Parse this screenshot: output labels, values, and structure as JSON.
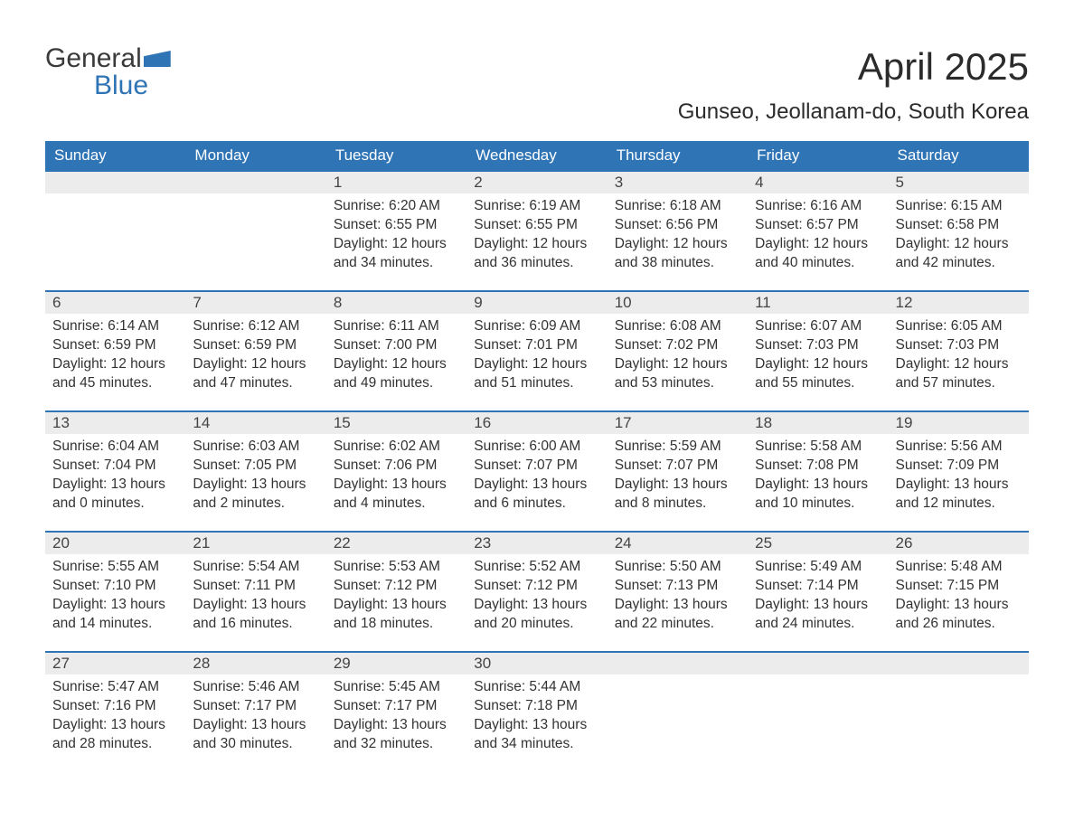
{
  "logo": {
    "word1": "General",
    "word2": "Blue"
  },
  "title": "April 2025",
  "subtitle": "Gunseo, Jeollanam-do, South Korea",
  "colors": {
    "header_bg": "#2f74b5",
    "header_text": "#ffffff",
    "daynum_bg": "#ececec",
    "daynum_border": "#2f74b5",
    "body_text": "#333333",
    "page_bg": "#ffffff",
    "logo_gray": "#3a3a3a",
    "logo_blue": "#2f74b5"
  },
  "fonts": {
    "title_size_pt": 32,
    "subtitle_size_pt": 18,
    "header_size_pt": 13,
    "cell_size_pt": 12
  },
  "weekdays": [
    "Sunday",
    "Monday",
    "Tuesday",
    "Wednesday",
    "Thursday",
    "Friday",
    "Saturday"
  ],
  "labels": {
    "sunrise": "Sunrise:",
    "sunset": "Sunset:",
    "daylight": "Daylight:"
  },
  "weeks": [
    [
      null,
      null,
      {
        "day": "1",
        "sunrise": "6:20 AM",
        "sunset": "6:55 PM",
        "daylight": "12 hours and 34 minutes."
      },
      {
        "day": "2",
        "sunrise": "6:19 AM",
        "sunset": "6:55 PM",
        "daylight": "12 hours and 36 minutes."
      },
      {
        "day": "3",
        "sunrise": "6:18 AM",
        "sunset": "6:56 PM",
        "daylight": "12 hours and 38 minutes."
      },
      {
        "day": "4",
        "sunrise": "6:16 AM",
        "sunset": "6:57 PM",
        "daylight": "12 hours and 40 minutes."
      },
      {
        "day": "5",
        "sunrise": "6:15 AM",
        "sunset": "6:58 PM",
        "daylight": "12 hours and 42 minutes."
      }
    ],
    [
      {
        "day": "6",
        "sunrise": "6:14 AM",
        "sunset": "6:59 PM",
        "daylight": "12 hours and 45 minutes."
      },
      {
        "day": "7",
        "sunrise": "6:12 AM",
        "sunset": "6:59 PM",
        "daylight": "12 hours and 47 minutes."
      },
      {
        "day": "8",
        "sunrise": "6:11 AM",
        "sunset": "7:00 PM",
        "daylight": "12 hours and 49 minutes."
      },
      {
        "day": "9",
        "sunrise": "6:09 AM",
        "sunset": "7:01 PM",
        "daylight": "12 hours and 51 minutes."
      },
      {
        "day": "10",
        "sunrise": "6:08 AM",
        "sunset": "7:02 PM",
        "daylight": "12 hours and 53 minutes."
      },
      {
        "day": "11",
        "sunrise": "6:07 AM",
        "sunset": "7:03 PM",
        "daylight": "12 hours and 55 minutes."
      },
      {
        "day": "12",
        "sunrise": "6:05 AM",
        "sunset": "7:03 PM",
        "daylight": "12 hours and 57 minutes."
      }
    ],
    [
      {
        "day": "13",
        "sunrise": "6:04 AM",
        "sunset": "7:04 PM",
        "daylight": "13 hours and 0 minutes."
      },
      {
        "day": "14",
        "sunrise": "6:03 AM",
        "sunset": "7:05 PM",
        "daylight": "13 hours and 2 minutes."
      },
      {
        "day": "15",
        "sunrise": "6:02 AM",
        "sunset": "7:06 PM",
        "daylight": "13 hours and 4 minutes."
      },
      {
        "day": "16",
        "sunrise": "6:00 AM",
        "sunset": "7:07 PM",
        "daylight": "13 hours and 6 minutes."
      },
      {
        "day": "17",
        "sunrise": "5:59 AM",
        "sunset": "7:07 PM",
        "daylight": "13 hours and 8 minutes."
      },
      {
        "day": "18",
        "sunrise": "5:58 AM",
        "sunset": "7:08 PM",
        "daylight": "13 hours and 10 minutes."
      },
      {
        "day": "19",
        "sunrise": "5:56 AM",
        "sunset": "7:09 PM",
        "daylight": "13 hours and 12 minutes."
      }
    ],
    [
      {
        "day": "20",
        "sunrise": "5:55 AM",
        "sunset": "7:10 PM",
        "daylight": "13 hours and 14 minutes."
      },
      {
        "day": "21",
        "sunrise": "5:54 AM",
        "sunset": "7:11 PM",
        "daylight": "13 hours and 16 minutes."
      },
      {
        "day": "22",
        "sunrise": "5:53 AM",
        "sunset": "7:12 PM",
        "daylight": "13 hours and 18 minutes."
      },
      {
        "day": "23",
        "sunrise": "5:52 AM",
        "sunset": "7:12 PM",
        "daylight": "13 hours and 20 minutes."
      },
      {
        "day": "24",
        "sunrise": "5:50 AM",
        "sunset": "7:13 PM",
        "daylight": "13 hours and 22 minutes."
      },
      {
        "day": "25",
        "sunrise": "5:49 AM",
        "sunset": "7:14 PM",
        "daylight": "13 hours and 24 minutes."
      },
      {
        "day": "26",
        "sunrise": "5:48 AM",
        "sunset": "7:15 PM",
        "daylight": "13 hours and 26 minutes."
      }
    ],
    [
      {
        "day": "27",
        "sunrise": "5:47 AM",
        "sunset": "7:16 PM",
        "daylight": "13 hours and 28 minutes."
      },
      {
        "day": "28",
        "sunrise": "5:46 AM",
        "sunset": "7:17 PM",
        "daylight": "13 hours and 30 minutes."
      },
      {
        "day": "29",
        "sunrise": "5:45 AM",
        "sunset": "7:17 PM",
        "daylight": "13 hours and 32 minutes."
      },
      {
        "day": "30",
        "sunrise": "5:44 AM",
        "sunset": "7:18 PM",
        "daylight": "13 hours and 34 minutes."
      },
      null,
      null,
      null
    ]
  ]
}
